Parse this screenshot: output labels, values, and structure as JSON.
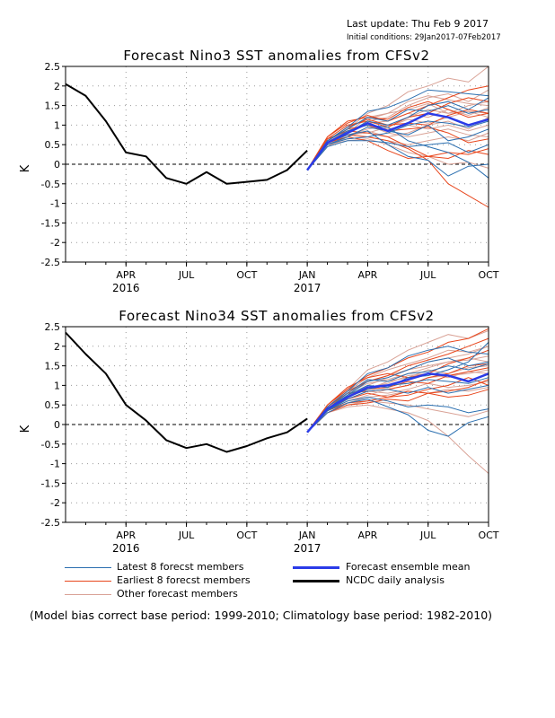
{
  "header": {
    "last_update": "Last update: Thu Feb 9 2017",
    "initial_conditions": "Initial conditions: 29Jan2017-07Feb2017"
  },
  "legend": {
    "latest": "Latest 8 forecst members",
    "earliest": "Earliest 8 forecst members",
    "other": "Other forecast members",
    "ensemble": "Forecast ensemble mean",
    "ncdc": "NCDC daily analysis"
  },
  "footnote": "(Model bias correct base period: 1999-2010; Climatology base period: 1982-2010)",
  "colors": {
    "latest": "#2b6fb0",
    "earliest": "#e8461c",
    "other": "#d9a296",
    "ensemble": "#2a3be8",
    "ncdc": "#000000"
  },
  "chart_data": [
    {
      "type": "line",
      "title": "Forecast Nino3 SST anomalies from CFSv2",
      "ylabel": "K",
      "ylim": [
        -2.5,
        2.5
      ],
      "yticks": [
        "-2.5",
        "-2",
        "-1.5",
        "-1",
        "-0.5",
        "0",
        "0.5",
        "1",
        "1.5",
        "2",
        "2.5"
      ],
      "xlim": [
        "2016-01",
        "2017-10"
      ],
      "xticks": [
        {
          "x": "2016-04",
          "label": "APR",
          "year": "2016"
        },
        {
          "x": "2016-07",
          "label": "JUL",
          "year": ""
        },
        {
          "x": "2016-10",
          "label": "OCT",
          "year": ""
        },
        {
          "x": "2017-01",
          "label": "JAN",
          "year": "2017"
        },
        {
          "x": "2017-04",
          "label": "APR",
          "year": ""
        },
        {
          "x": "2017-07",
          "label": "JUL",
          "year": ""
        },
        {
          "x": "2017-10",
          "label": "OCT",
          "year": ""
        }
      ],
      "grid": true,
      "zero_line": "dashed",
      "series": [
        {
          "name": "NCDC daily analysis",
          "x": [
            "2016-01",
            "2016-02",
            "2016-03",
            "2016-04",
            "2016-05",
            "2016-06",
            "2016-07",
            "2016-08",
            "2016-09",
            "2016-10",
            "2016-11",
            "2016-12",
            "2017-01"
          ],
          "values": [
            2.05,
            1.75,
            1.1,
            0.3,
            0.2,
            -0.35,
            -0.5,
            -0.2,
            -0.5,
            -0.45,
            -0.4,
            -0.15,
            0.35
          ]
        },
        {
          "name": "Forecast ensemble mean",
          "x": [
            "2017-01",
            "2017-02",
            "2017-03",
            "2017-04",
            "2017-05",
            "2017-06",
            "2017-07",
            "2017-08",
            "2017-09",
            "2017-10"
          ],
          "values": [
            -0.15,
            0.55,
            0.8,
            1.05,
            0.85,
            1.05,
            1.3,
            1.2,
            1.0,
            1.15
          ]
        }
      ],
      "members_latest": [
        [
          -0.15,
          0.6,
          0.95,
          1.35,
          1.45,
          1.65,
          1.9,
          1.85,
          1.8,
          1.75
        ],
        [
          -0.15,
          0.55,
          0.8,
          1.1,
          1.0,
          1.2,
          1.5,
          1.6,
          1.4,
          1.7
        ],
        [
          -0.15,
          0.5,
          0.7,
          0.95,
          0.85,
          0.75,
          1.0,
          0.6,
          0.7,
          0.9
        ],
        [
          -0.15,
          0.45,
          0.6,
          0.6,
          0.55,
          0.45,
          0.5,
          0.55,
          0.3,
          0.5
        ],
        [
          -0.15,
          0.55,
          0.75,
          0.85,
          0.5,
          0.2,
          0.1,
          -0.3,
          -0.05,
          0.0
        ],
        [
          -0.15,
          0.6,
          0.9,
          1.2,
          1.1,
          1.4,
          1.35,
          1.5,
          1.3,
          1.4
        ],
        [
          -0.15,
          0.5,
          0.65,
          0.7,
          0.8,
          1.0,
          1.1,
          1.05,
          0.95,
          1.1
        ],
        [
          -0.15,
          0.55,
          0.85,
          1.0,
          0.95,
          0.6,
          0.45,
          0.3,
          0.05,
          -0.35
        ]
      ],
      "members_earliest": [
        [
          -0.15,
          0.7,
          1.1,
          1.2,
          1.15,
          1.45,
          1.6,
          1.4,
          1.2,
          1.3
        ],
        [
          -0.15,
          0.65,
          1.0,
          1.1,
          0.95,
          1.2,
          1.3,
          1.55,
          1.7,
          1.6
        ],
        [
          -0.15,
          0.6,
          0.9,
          1.0,
          0.85,
          0.9,
          0.95,
          0.8,
          0.55,
          0.65
        ],
        [
          -0.15,
          0.55,
          0.75,
          0.7,
          0.6,
          0.4,
          0.1,
          -0.5,
          -0.8,
          -1.1
        ],
        [
          -0.15,
          0.7,
          1.05,
          1.25,
          1.1,
          1.3,
          1.5,
          1.7,
          1.9,
          2.0
        ],
        [
          -0.15,
          0.55,
          0.7,
          0.6,
          0.35,
          0.15,
          0.2,
          0.15,
          0.35,
          0.25
        ],
        [
          -0.15,
          0.6,
          0.95,
          1.15,
          1.0,
          1.05,
          1.0,
          1.25,
          1.4,
          1.3
        ],
        [
          -0.15,
          0.65,
          0.85,
          0.8,
          0.7,
          0.45,
          0.2,
          0.3,
          0.25,
          0.4
        ]
      ],
      "members_other": [
        [
          -0.15,
          0.55,
          0.9,
          1.3,
          1.5,
          1.85,
          2.0,
          2.2,
          2.1,
          2.5
        ],
        [
          -0.15,
          0.5,
          0.8,
          1.1,
          1.2,
          1.5,
          1.7,
          1.8,
          1.6,
          1.9
        ],
        [
          -0.15,
          0.6,
          0.75,
          0.9,
          1.0,
          1.2,
          1.4,
          1.3,
          1.5,
          1.6
        ],
        [
          -0.15,
          0.45,
          0.7,
          0.85,
          0.7,
          0.8,
          1.0,
          1.1,
          0.9,
          1.2
        ],
        [
          -0.15,
          0.5,
          0.65,
          0.7,
          0.6,
          0.5,
          0.6,
          0.7,
          0.6,
          0.8
        ],
        [
          -0.15,
          0.55,
          0.85,
          1.05,
          1.1,
          1.3,
          1.2,
          1.4,
          1.25,
          1.45
        ],
        [
          -0.15,
          0.6,
          0.95,
          1.15,
          1.3,
          1.6,
          1.75,
          1.65,
          1.55,
          1.5
        ],
        [
          -0.15,
          0.5,
          0.6,
          0.65,
          0.5,
          0.3,
          0.2,
          0.0,
          0.05,
          -0.1
        ],
        [
          -0.15,
          0.45,
          0.7,
          0.95,
          0.9,
          1.0,
          0.9,
          1.0,
          0.85,
          1.0
        ],
        [
          -0.15,
          0.55,
          0.8,
          1.2,
          1.3,
          1.4,
          1.55,
          1.3,
          1.35,
          1.2
        ],
        [
          -0.15,
          0.6,
          0.9,
          1.0,
          0.8,
          0.7,
          0.8,
          0.9,
          0.75,
          0.7
        ],
        [
          -0.15,
          0.5,
          0.75,
          0.8,
          0.95,
          1.15,
          1.05,
          1.2,
          1.35,
          1.3
        ]
      ]
    },
    {
      "type": "line",
      "title": "Forecast Nino34 SST anomalies from CFSv2",
      "ylabel": "K",
      "ylim": [
        -2.5,
        2.5
      ],
      "yticks": [
        "-2.5",
        "-2",
        "-1.5",
        "-1",
        "-0.5",
        "0",
        "0.5",
        "1",
        "1.5",
        "2",
        "2.5"
      ],
      "xlim": [
        "2016-01",
        "2017-10"
      ],
      "xticks": [
        {
          "x": "2016-04",
          "label": "APR",
          "year": "2016"
        },
        {
          "x": "2016-07",
          "label": "JUL",
          "year": ""
        },
        {
          "x": "2016-10",
          "label": "OCT",
          "year": ""
        },
        {
          "x": "2017-01",
          "label": "JAN",
          "year": "2017"
        },
        {
          "x": "2017-04",
          "label": "APR",
          "year": ""
        },
        {
          "x": "2017-07",
          "label": "JUL",
          "year": ""
        },
        {
          "x": "2017-10",
          "label": "OCT",
          "year": ""
        }
      ],
      "grid": true,
      "zero_line": "dashed",
      "series": [
        {
          "name": "NCDC daily analysis",
          "x": [
            "2016-01",
            "2016-02",
            "2016-03",
            "2016-04",
            "2016-05",
            "2016-06",
            "2016-07",
            "2016-08",
            "2016-09",
            "2016-10",
            "2016-11",
            "2016-12",
            "2017-01"
          ],
          "values": [
            2.35,
            1.8,
            1.3,
            0.5,
            0.1,
            -0.4,
            -0.6,
            -0.5,
            -0.7,
            -0.55,
            -0.35,
            -0.2,
            0.15
          ]
        },
        {
          "name": "Forecast ensemble mean",
          "x": [
            "2017-01",
            "2017-02",
            "2017-03",
            "2017-04",
            "2017-05",
            "2017-06",
            "2017-07",
            "2017-08",
            "2017-09",
            "2017-10"
          ],
          "values": [
            -0.2,
            0.4,
            0.7,
            0.95,
            1.0,
            1.15,
            1.3,
            1.25,
            1.1,
            1.3
          ]
        }
      ],
      "members_latest": [
        [
          -0.2,
          0.45,
          0.85,
          1.3,
          1.45,
          1.75,
          1.9,
          2.0,
          1.85,
          1.8
        ],
        [
          -0.2,
          0.4,
          0.75,
          1.1,
          1.2,
          1.4,
          1.6,
          1.7,
          1.5,
          1.6
        ],
        [
          -0.2,
          0.35,
          0.65,
          0.85,
          0.9,
          0.8,
          0.95,
          0.8,
          0.9,
          1.0
        ],
        [
          -0.2,
          0.3,
          0.55,
          0.65,
          0.45,
          0.25,
          -0.15,
          -0.3,
          0.05,
          0.2
        ],
        [
          -0.2,
          0.35,
          0.6,
          0.7,
          0.6,
          0.45,
          0.5,
          0.45,
          0.3,
          0.4
        ],
        [
          -0.2,
          0.4,
          0.8,
          1.15,
          1.1,
          1.3,
          1.35,
          1.5,
          1.4,
          1.55
        ],
        [
          -0.2,
          0.35,
          0.7,
          0.9,
          1.0,
          1.05,
          1.15,
          1.1,
          1.05,
          1.2
        ],
        [
          -0.2,
          0.4,
          0.75,
          1.0,
          0.95,
          1.2,
          1.25,
          1.4,
          1.6,
          2.1
        ]
      ],
      "members_earliest": [
        [
          -0.2,
          0.5,
          0.9,
          1.25,
          1.45,
          1.7,
          1.85,
          2.1,
          2.2,
          2.45
        ],
        [
          -0.2,
          0.45,
          0.85,
          1.1,
          1.25,
          1.5,
          1.65,
          1.8,
          2.0,
          2.2
        ],
        [
          -0.2,
          0.4,
          0.7,
          0.9,
          0.95,
          1.1,
          1.05,
          1.25,
          1.35,
          1.45
        ],
        [
          -0.2,
          0.35,
          0.55,
          0.6,
          0.7,
          0.85,
          0.8,
          0.7,
          0.75,
          0.9
        ],
        [
          -0.2,
          0.45,
          0.8,
          0.85,
          0.9,
          1.0,
          1.2,
          1.3,
          1.5,
          1.55
        ],
        [
          -0.2,
          0.4,
          0.65,
          0.8,
          0.7,
          0.75,
          0.9,
          1.0,
          1.2,
          1.0
        ],
        [
          -0.2,
          0.5,
          0.95,
          1.2,
          1.3,
          1.2,
          1.3,
          1.55,
          1.7,
          1.9
        ],
        [
          -0.2,
          0.3,
          0.5,
          0.55,
          0.65,
          0.6,
          0.8,
          0.85,
          0.95,
          1.15
        ]
      ],
      "members_other": [
        [
          -0.2,
          0.45,
          0.9,
          1.4,
          1.6,
          1.9,
          2.1,
          2.3,
          2.2,
          2.4
        ],
        [
          -0.2,
          0.4,
          0.7,
          1.0,
          1.2,
          1.4,
          1.6,
          1.7,
          1.8,
          2.0
        ],
        [
          -0.2,
          0.35,
          0.6,
          0.75,
          0.9,
          1.0,
          1.2,
          1.25,
          1.3,
          1.4
        ],
        [
          -0.2,
          0.3,
          0.5,
          0.6,
          0.55,
          0.5,
          0.4,
          0.3,
          0.2,
          0.35
        ],
        [
          -0.2,
          0.45,
          0.8,
          1.05,
          1.15,
          1.3,
          1.45,
          1.6,
          1.65,
          1.75
        ],
        [
          -0.2,
          0.4,
          0.75,
          0.95,
          1.05,
          1.25,
          1.3,
          1.2,
          1.35,
          1.3
        ],
        [
          -0.2,
          0.35,
          0.65,
          0.85,
          0.8,
          0.9,
          1.05,
          0.95,
          1.0,
          1.1
        ],
        [
          -0.2,
          0.3,
          0.45,
          0.5,
          0.4,
          0.3,
          0.1,
          -0.3,
          -0.8,
          -1.25
        ],
        [
          -0.2,
          0.45,
          0.85,
          1.2,
          1.4,
          1.55,
          1.7,
          1.9,
          1.85,
          2.0
        ],
        [
          -0.2,
          0.4,
          0.7,
          0.9,
          1.1,
          1.2,
          1.4,
          1.3,
          1.45,
          1.5
        ],
        [
          -0.2,
          0.35,
          0.55,
          0.7,
          0.75,
          0.85,
          0.8,
          0.9,
          0.85,
          0.95
        ],
        [
          -0.2,
          0.4,
          0.8,
          1.1,
          1.25,
          1.4,
          1.5,
          1.6,
          1.7,
          1.6
        ]
      ]
    }
  ]
}
